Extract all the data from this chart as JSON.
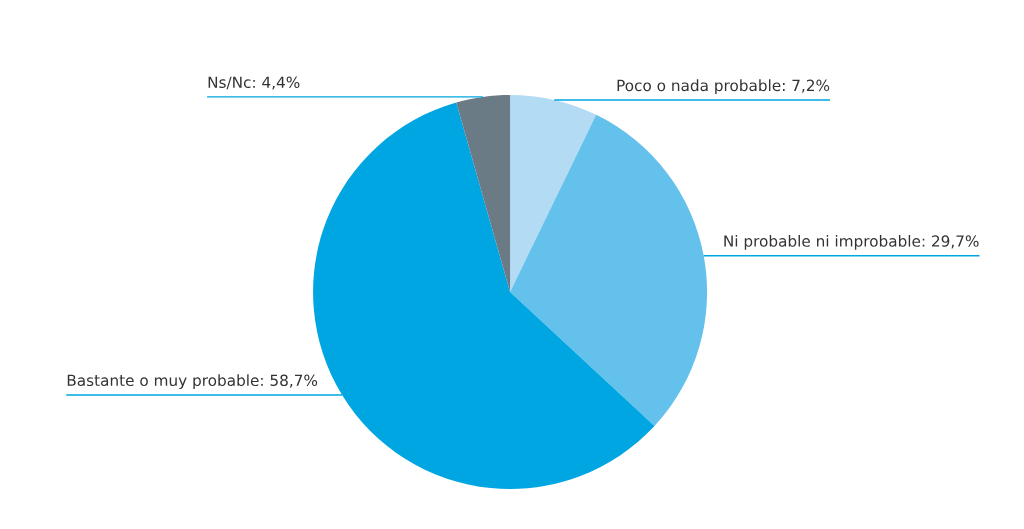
{
  "chart_data": {
    "type": "pie",
    "categories": [
      "Poco o nada probable",
      "Ni probable ni improbable",
      "Bastante o muy probable",
      "Ns/Nc"
    ],
    "values": [
      7.2,
      29.7,
      58.7,
      4.4
    ],
    "colors": [
      "#b3dcf4",
      "#63c1ec",
      "#00a6e2",
      "#6b7b85"
    ],
    "value_labels": [
      "7,2%",
      "29,7%",
      "58,7%",
      "4,4%"
    ],
    "legend": false
  }
}
